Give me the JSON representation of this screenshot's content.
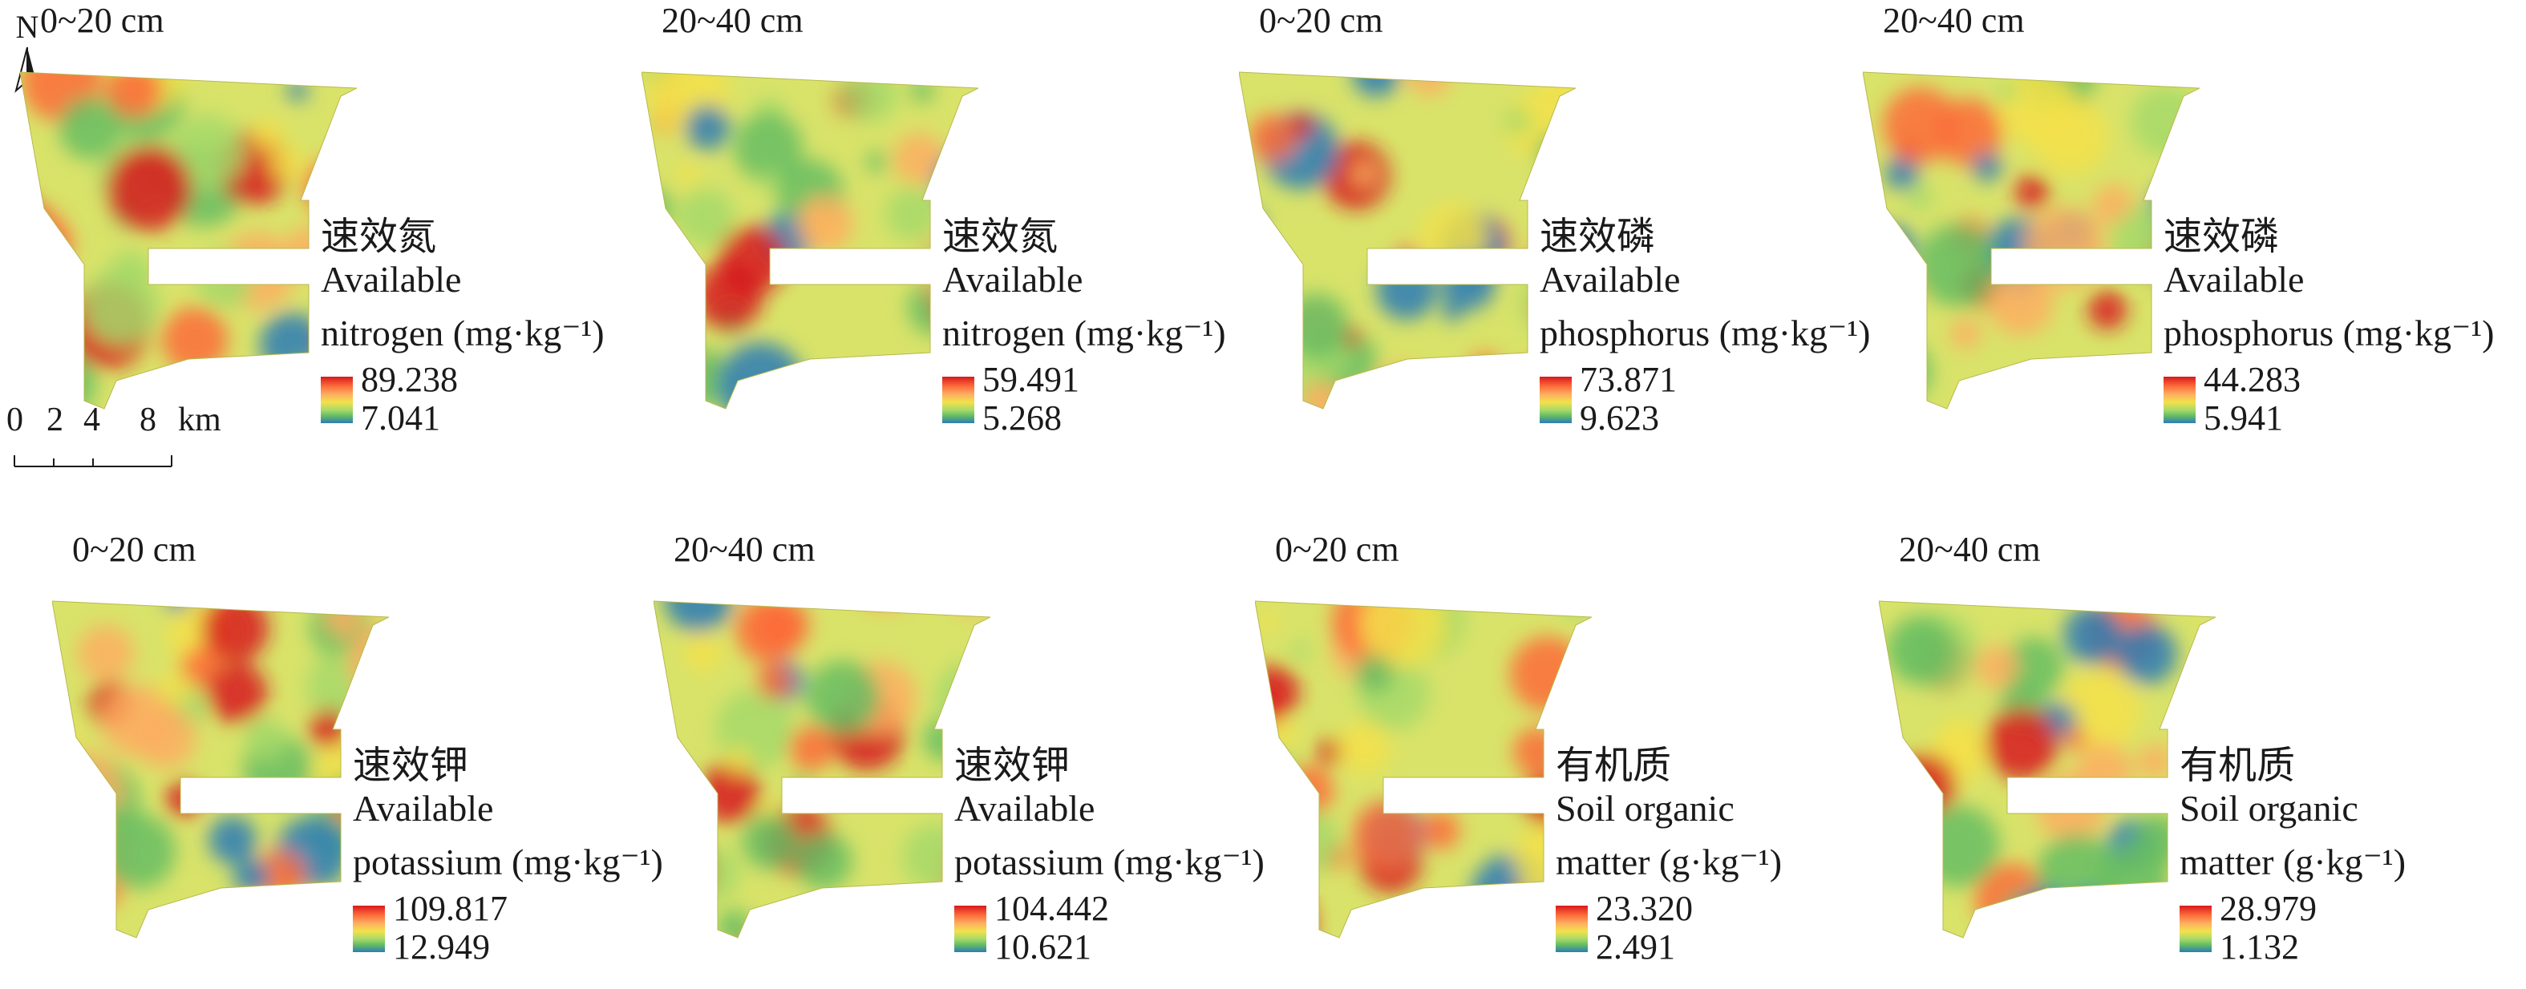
{
  "north_label": "N",
  "scale": {
    "ticks": [
      "0",
      "2",
      "4",
      "8"
    ],
    "unit": "km"
  },
  "panels": [
    {
      "depth": "0~20 cm",
      "prop_zh": "速效氮",
      "prop_en1": "Available",
      "prop_en2": "nitrogen (mg·kg⁻¹)",
      "max": "89.238",
      "min": "7.041"
    },
    {
      "depth": "20~40 cm",
      "prop_zh": "速效氮",
      "prop_en1": "Available",
      "prop_en2": "nitrogen (mg·kg⁻¹)",
      "max": "59.491",
      "min": "5.268"
    },
    {
      "depth": "0~20 cm",
      "prop_zh": "速效磷",
      "prop_en1": "Available",
      "prop_en2": "phosphorus (mg·kg⁻¹)",
      "max": "73.871",
      "min": "9.623"
    },
    {
      "depth": "20~40 cm",
      "prop_zh": "速效磷",
      "prop_en1": "Available",
      "prop_en2": "phosphorus (mg·kg⁻¹)",
      "max": "44.283",
      "min": "5.941"
    },
    {
      "depth": "0~20 cm",
      "prop_zh": "速效钾",
      "prop_en1": "Available",
      "prop_en2": "potassium (mg·kg⁻¹)",
      "max": "109.817",
      "min": "12.949"
    },
    {
      "depth": "20~40 cm",
      "prop_zh": "速效钾",
      "prop_en1": "Available",
      "prop_en2": "potassium (mg·kg⁻¹)",
      "max": "104.442",
      "min": "10.621"
    },
    {
      "depth": "0~20 cm",
      "prop_zh": "有机质",
      "prop_en1": "Soil organic",
      "prop_en2": "matter (g·kg⁻¹)",
      "max": "23.320",
      "min": "2.491"
    },
    {
      "depth": "20~40 cm",
      "prop_zh": "有机质",
      "prop_en1": "Soil organic",
      "prop_en2": "matter (g·kg⁻¹)",
      "max": "28.979",
      "min": "1.132"
    }
  ]
}
